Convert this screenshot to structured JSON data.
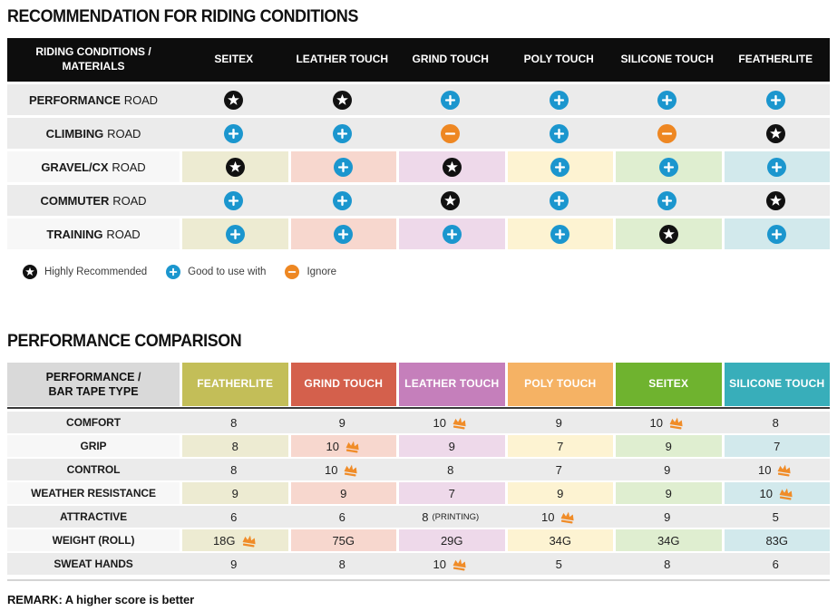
{
  "chart_data": [
    {
      "type": "table",
      "title": "RECOMMENDATION FOR RIDING CONDITIONS",
      "row_header_line1": "RIDING CONDITIONS /",
      "row_header_line2": "MATERIALS",
      "columns": [
        "SEITEX",
        "LEATHER TOUCH",
        "GRIND TOUCH",
        "POLY TOUCH",
        "SILICONE TOUCH",
        "FEATHERLITE"
      ],
      "rows": [
        {
          "label_strong": "PERFORMANCE",
          "label_rest": "ROAD",
          "tinted": false,
          "cells": [
            "highly_recommended",
            "highly_recommended",
            "good_to_use",
            "good_to_use",
            "good_to_use",
            "good_to_use"
          ]
        },
        {
          "label_strong": "CLIMBING",
          "label_rest": "ROAD",
          "tinted": false,
          "cells": [
            "good_to_use",
            "good_to_use",
            "ignore",
            "good_to_use",
            "ignore",
            "highly_recommended"
          ]
        },
        {
          "label_strong": "GRAVEL/CX",
          "label_rest": "ROAD",
          "tinted": true,
          "cells": [
            "highly_recommended",
            "good_to_use",
            "highly_recommended",
            "good_to_use",
            "good_to_use",
            "good_to_use"
          ]
        },
        {
          "label_strong": "COMMUTER",
          "label_rest": "ROAD",
          "tinted": false,
          "cells": [
            "good_to_use",
            "good_to_use",
            "highly_recommended",
            "good_to_use",
            "good_to_use",
            "highly_recommended"
          ]
        },
        {
          "label_strong": "TRAINING",
          "label_rest": "ROAD",
          "tinted": true,
          "cells": [
            "good_to_use",
            "good_to_use",
            "good_to_use",
            "good_to_use",
            "highly_recommended",
            "good_to_use"
          ]
        }
      ],
      "legend": [
        {
          "icon": "star",
          "label": "Highly Recommended"
        },
        {
          "icon": "plus",
          "label": "Good to use with"
        },
        {
          "icon": "minus",
          "label": "Ignore"
        }
      ]
    },
    {
      "type": "table",
      "title": "PERFORMANCE COMPARISON",
      "row_header_line1": "PERFORMANCE /",
      "row_header_line2": "BAR TAPE TYPE",
      "columns": [
        {
          "label": "FEATHERLITE",
          "color": "#c3be58"
        },
        {
          "label": "GRIND TOUCH",
          "color": "#d4604c"
        },
        {
          "label": "LEATHER TOUCH",
          "color": "#c57fbb"
        },
        {
          "label": "POLY TOUCH",
          "color": "#f5b264"
        },
        {
          "label": "SEITEX",
          "color": "#6fb32f"
        },
        {
          "label": "SILICONE TOUCH",
          "color": "#38aeba"
        }
      ],
      "rows": [
        {
          "label": "COMFORT",
          "tinted": false,
          "cells": [
            {
              "value": "8"
            },
            {
              "value": "9"
            },
            {
              "value": "10",
              "crown": true
            },
            {
              "value": "9"
            },
            {
              "value": "10",
              "crown": true
            },
            {
              "value": "8"
            }
          ]
        },
        {
          "label": "GRIP",
          "tinted": true,
          "cells": [
            {
              "value": "8"
            },
            {
              "value": "10",
              "crown": true
            },
            {
              "value": "9"
            },
            {
              "value": "7"
            },
            {
              "value": "9"
            },
            {
              "value": "7"
            }
          ]
        },
        {
          "label": "CONTROL",
          "tinted": false,
          "cells": [
            {
              "value": "8"
            },
            {
              "value": "10",
              "crown": true
            },
            {
              "value": "8"
            },
            {
              "value": "7"
            },
            {
              "value": "9"
            },
            {
              "value": "10",
              "crown": true
            }
          ]
        },
        {
          "label": "WEATHER RESISTANCE",
          "tinted": true,
          "cells": [
            {
              "value": "9"
            },
            {
              "value": "9"
            },
            {
              "value": "7"
            },
            {
              "value": "9"
            },
            {
              "value": "9"
            },
            {
              "value": "10",
              "crown": true
            }
          ]
        },
        {
          "label": "ATTRACTIVE",
          "tinted": false,
          "cells": [
            {
              "value": "6"
            },
            {
              "value": "6"
            },
            {
              "value": "8",
              "note": "(PRINTING)"
            },
            {
              "value": "10",
              "crown": true
            },
            {
              "value": "9"
            },
            {
              "value": "5"
            }
          ]
        },
        {
          "label": "WEIGHT (ROLL)",
          "tinted": true,
          "cells": [
            {
              "value": "18G",
              "crown": true
            },
            {
              "value": "75G"
            },
            {
              "value": "29G"
            },
            {
              "value": "34G"
            },
            {
              "value": "34G"
            },
            {
              "value": "83G"
            }
          ]
        },
        {
          "label": "SWEAT HANDS",
          "tinted": false,
          "cells": [
            {
              "value": "9"
            },
            {
              "value": "8"
            },
            {
              "value": "10",
              "crown": true
            },
            {
              "value": "5"
            },
            {
              "value": "8"
            },
            {
              "value": "6"
            }
          ]
        }
      ],
      "remark": "REMARK: A higher score is better"
    }
  ],
  "colors": {
    "header_bar": "#0d0d0d",
    "row_gray": "#ebebeb",
    "row_light_label": "#f7f7f7",
    "table2_label_header_bg": "#d9d9d9",
    "icon_star_circle": "#111111",
    "icon_plus_circle": "#1b96ce",
    "icon_minus_circle": "#ee8722",
    "crown": "#f08c28",
    "column_tints": [
      "#edebd2",
      "#f7d7ce",
      "#eed9ea",
      "#fdf3d2",
      "#dfeed0",
      "#d2e9ec"
    ]
  }
}
